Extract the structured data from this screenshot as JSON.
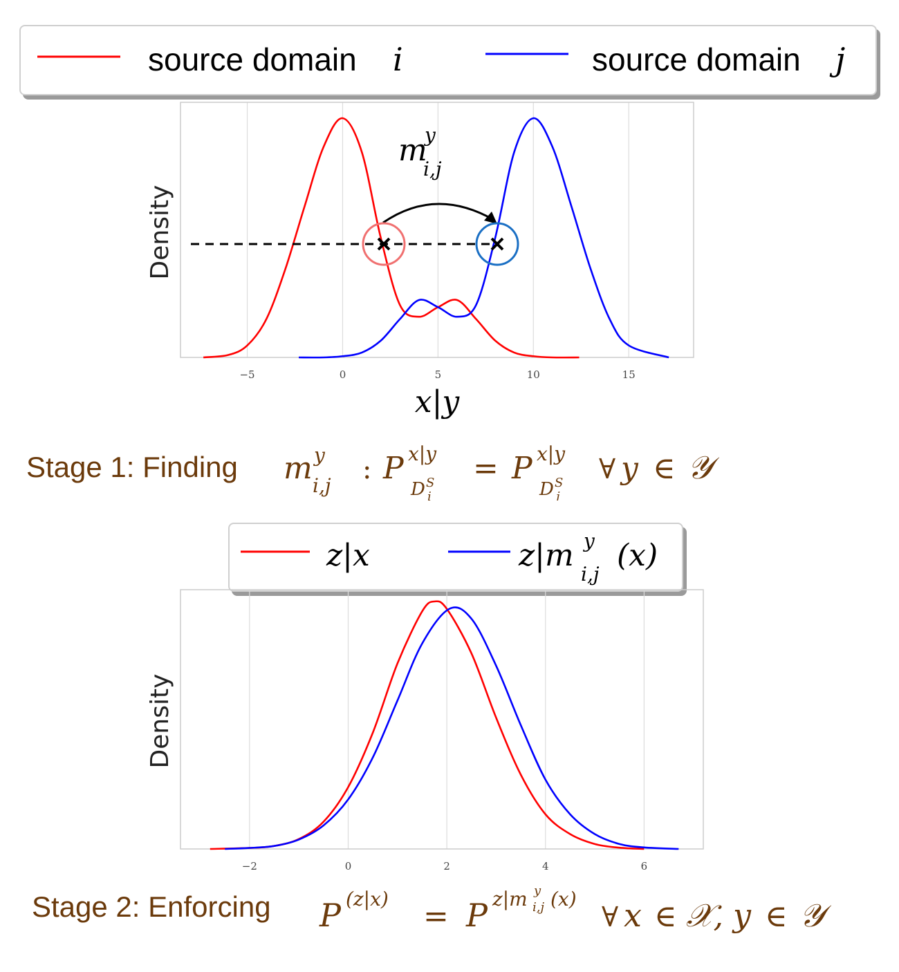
{
  "legend1": {
    "items": [
      {
        "label": "source domain",
        "symbol": "i",
        "color": "#ff0000"
      },
      {
        "label": "source domain",
        "symbol": "j",
        "color": "#0000ff"
      }
    ]
  },
  "legend2": {
    "items": [
      {
        "label": "z|x",
        "color": "#ff0000"
      },
      {
        "label": "z|m",
        "sup": "y",
        "sub": "i,j",
        "tail": "(x)",
        "color": "#0000ff"
      }
    ]
  },
  "captions": {
    "stage1_prefix": "Stage 1: Finding",
    "stage2_prefix": "Stage 2: Enforcing"
  },
  "chart_data": [
    {
      "type": "line",
      "xlabel": "x|y",
      "ylabel": "Density",
      "xlim": [
        -8.5,
        18.4
      ],
      "xticks": [
        -5,
        0,
        5,
        10,
        15
      ],
      "grid": "vertical",
      "annotation": {
        "text": "m",
        "sup": "y",
        "sub": "i,j",
        "from_x": 2,
        "to_x": 8,
        "level": 0.5
      },
      "series": [
        {
          "name": "source domain i",
          "color": "#ff0000",
          "x": [
            -7.3,
            -6,
            -5,
            -4,
            -3,
            -2,
            -1,
            0,
            1,
            2,
            3,
            4,
            5,
            6,
            7,
            8,
            9,
            10,
            11,
            12.4
          ],
          "y": [
            0.0,
            0.01,
            0.05,
            0.16,
            0.37,
            0.63,
            0.88,
            1.0,
            0.86,
            0.5,
            0.22,
            0.17,
            0.21,
            0.24,
            0.16,
            0.07,
            0.02,
            0.005,
            0.0,
            0.0
          ]
        },
        {
          "name": "source domain j",
          "color": "#0000ff",
          "x": [
            -2.3,
            -1,
            0,
            1,
            2,
            3,
            4,
            5,
            6,
            7,
            8,
            9,
            10,
            11,
            12,
            13,
            14,
            15,
            17.1
          ],
          "y": [
            0.0,
            0.0,
            0.005,
            0.02,
            0.07,
            0.16,
            0.24,
            0.21,
            0.17,
            0.22,
            0.5,
            0.86,
            1.0,
            0.88,
            0.63,
            0.37,
            0.16,
            0.05,
            0.0
          ]
        }
      ]
    },
    {
      "type": "line",
      "ylabel": "Density",
      "xlim": [
        -3.4,
        7.2
      ],
      "xticks": [
        -2,
        0,
        2,
        4,
        6
      ],
      "grid": "vertical",
      "series": [
        {
          "name": "z|x",
          "color": "#ff0000",
          "x": [
            -2.8,
            -2,
            -1.5,
            -1,
            -0.5,
            0,
            0.5,
            1,
            1.5,
            1.75,
            2,
            2.5,
            3,
            3.5,
            4,
            4.5,
            5,
            5.5,
            6
          ],
          "y": [
            0.0,
            0.004,
            0.012,
            0.04,
            0.11,
            0.25,
            0.47,
            0.75,
            0.96,
            1.0,
            0.97,
            0.79,
            0.53,
            0.3,
            0.14,
            0.06,
            0.02,
            0.005,
            0.0
          ]
        },
        {
          "name": "z|m(x)",
          "color": "#0000ff",
          "x": [
            -2.5,
            -2,
            -1.5,
            -1,
            -0.5,
            0,
            0.5,
            1,
            1.5,
            2.05,
            2.5,
            3,
            3.5,
            4,
            4.5,
            5,
            5.5,
            6,
            6.7
          ],
          "y": [
            0.0,
            0.004,
            0.012,
            0.038,
            0.095,
            0.2,
            0.37,
            0.6,
            0.83,
            0.97,
            0.93,
            0.74,
            0.5,
            0.28,
            0.14,
            0.06,
            0.02,
            0.006,
            0.0
          ]
        }
      ]
    }
  ]
}
